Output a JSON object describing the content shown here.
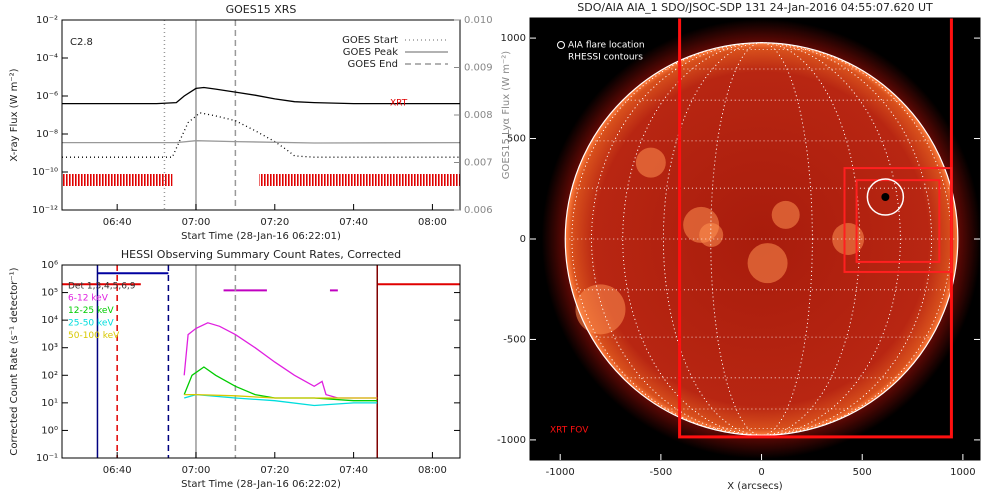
{
  "chart_data": [
    {
      "type": "line",
      "title": "GOES15 XRS",
      "xlabel": "Start Time (28-Jan-16 06:22:01)",
      "ylabel": "X-ray Flux (W m⁻²)",
      "y2label": "GOES15 Lyα Flux (W m⁻²)",
      "log_y": true,
      "xlim": [
        "06:26",
        "08:07"
      ],
      "xticks": [
        "06:40",
        "07:00",
        "07:20",
        "07:40",
        "08:00"
      ],
      "ylim": [
        1e-12,
        0.01
      ],
      "yticks": [
        {
          "value": 1e-12,
          "label": "10⁻¹²"
        },
        {
          "value": 1e-10,
          "label": "10⁻¹⁰"
        },
        {
          "value": 1e-08,
          "label": "10⁻⁸"
        },
        {
          "value": 1e-06,
          "label": "10⁻⁶"
        },
        {
          "value": 0.0001,
          "label": "10⁻⁴"
        },
        {
          "value": 0.01,
          "label": "10⁻²"
        }
      ],
      "y2lim": [
        0.006,
        0.01
      ],
      "y2ticks": [
        0.006,
        0.007,
        0.008,
        0.009,
        {
          "value": 0.01,
          "label": "0.010"
        }
      ],
      "series": [
        {
          "color": "#000000",
          "style": "solid",
          "x": [
            "06:26",
            "06:50",
            "06:55",
            "06:57",
            "07:00",
            "07:02",
            "07:05",
            "07:10",
            "07:15",
            "07:20",
            "07:25",
            "07:30",
            "07:40",
            "08:07"
          ],
          "values": [
            4e-07,
            4e-07,
            4.5e-07,
            1e-06,
            2.5e-06,
            2.8e-06,
            2.3e-06,
            1.6e-06,
            1.1e-06,
            7e-07,
            5e-07,
            4.5e-07,
            4e-07,
            4e-07
          ]
        },
        {
          "color": "#000000",
          "style": "dotted",
          "x": [
            "06:26",
            "06:54",
            "06:56",
            "06:58",
            "07:01",
            "07:05",
            "07:10",
            "07:15",
            "07:20",
            "07:23",
            "07:25",
            "07:30",
            "08:07"
          ],
          "values": [
            6e-10,
            6e-10,
            5e-09,
            4e-08,
            1.3e-07,
            9e-08,
            5e-08,
            1.5e-08,
            4e-09,
            1.5e-09,
            7e-10,
            6e-10,
            6e-10
          ]
        },
        {
          "color": "#999999",
          "style": "solid",
          "axis": "y2",
          "x": [
            "06:26",
            "06:55",
            "07:00",
            "07:10",
            "07:30",
            "08:07"
          ],
          "values": [
            0.00742,
            0.00742,
            0.00746,
            0.00744,
            0.00741,
            0.00742
          ]
        }
      ],
      "vlines": [
        {
          "name": "GOES Start",
          "x": "06:52",
          "color": "#999999",
          "style": "dotted"
        },
        {
          "name": "GOES Peak",
          "x": "07:00",
          "color": "#999999",
          "style": "solid"
        },
        {
          "name": "GOES End",
          "x": "07:10",
          "color": "#999999",
          "style": "dashed"
        }
      ],
      "xrt_intervals": [
        [
          "06:26",
          "06:54"
        ],
        [
          "07:16",
          "08:07"
        ]
      ],
      "xrt_color": "#e00000",
      "annotations": [
        "C2.8",
        "XRT"
      ],
      "legend": "upper right"
    },
    {
      "type": "line",
      "title": "HESSI Observing Summary Count Rates, Corrected",
      "xlabel": "Start Time (28-Jan-16 06:22:02)",
      "ylabel": "Corrected Count Rate (s⁻¹ detector⁻¹)",
      "log_y": true,
      "xlim": [
        "06:26",
        "08:07"
      ],
      "xticks": [
        "06:40",
        "07:00",
        "07:20",
        "07:40",
        "08:00"
      ],
      "ylim": [
        0.1,
        1000000
      ],
      "yticks": [
        {
          "value": 0.1,
          "label": "10⁻¹"
        },
        {
          "value": 1,
          "label": "10⁰"
        },
        {
          "value": 10,
          "label": "10¹"
        },
        {
          "value": 100,
          "label": "10²"
        },
        {
          "value": 1000,
          "label": "10³"
        },
        {
          "value": 10000,
          "label": "10⁴"
        },
        {
          "value": 100000,
          "label": "10⁵"
        },
        {
          "value": 1000000,
          "label": "10⁶"
        }
      ],
      "detectors": "Det 1,3,4,5,6,9",
      "series": [
        {
          "name": "6-12 keV",
          "color": "#e020e0",
          "x": [
            "06:57",
            "06:58",
            "07:00",
            "07:03",
            "07:06",
            "07:10",
            "07:15",
            "07:20",
            "07:25",
            "07:30",
            "07:32",
            "07:33",
            "07:36",
            "07:46"
          ],
          "values": [
            100,
            3000,
            5000,
            8000,
            6000,
            3000,
            1000,
            300,
            100,
            40,
            60,
            20,
            15,
            15
          ]
        },
        {
          "name": "12-25 keV",
          "color": "#00cc00",
          "x": [
            "06:57",
            "06:59",
            "07:02",
            "07:05",
            "07:10",
            "07:15",
            "07:20",
            "07:30",
            "07:40",
            "07:46"
          ],
          "values": [
            20,
            100,
            200,
            100,
            40,
            20,
            15,
            15,
            12,
            12
          ]
        },
        {
          "name": "25-50 keV",
          "color": "#00dddd",
          "x": [
            "06:57",
            "07:00",
            "07:10",
            "07:20",
            "07:30",
            "07:40",
            "07:46"
          ],
          "values": [
            15,
            20,
            15,
            12,
            8,
            10,
            10
          ]
        },
        {
          "name": "50-100 keV",
          "color": "#d8c800",
          "x": [
            "06:57",
            "07:00",
            "07:10",
            "07:20",
            "07:30",
            "07:40",
            "07:46"
          ],
          "values": [
            20,
            20,
            18,
            15,
            15,
            15,
            15
          ]
        }
      ],
      "vlines": [
        {
          "x": "06:35",
          "color": "#000080",
          "style": "solid"
        },
        {
          "x": "06:40",
          "color": "#e00000",
          "style": "dashed"
        },
        {
          "x": "06:53",
          "color": "#000080",
          "style": "dashed"
        },
        {
          "x": "07:00",
          "color": "#999999",
          "style": "solid"
        },
        {
          "x": "07:10",
          "color": "#999999",
          "style": "dashed"
        },
        {
          "x": "07:46",
          "color": "#800000",
          "style": "solid"
        }
      ],
      "flags": [
        {
          "color": "#e00000",
          "x": [
            "06:26",
            "06:46"
          ],
          "value": 200000
        },
        {
          "color": "#e00000",
          "x": [
            "07:46",
            "08:07"
          ],
          "value": 200000
        },
        {
          "color": "#c000c0",
          "x": [
            "07:07",
            "07:18"
          ],
          "value": 120000
        },
        {
          "color": "#c000c0",
          "x": [
            "07:34",
            "07:36"
          ],
          "value": 120000
        },
        {
          "color": "#0000a0",
          "x": [
            "06:35",
            "06:53"
          ],
          "value": 500000
        }
      ]
    },
    {
      "type": "image",
      "title": "SDO/AIA AIA_1 SDO/JSOC-SDP 131 24-Jan-2016 04:55:07.620 UT",
      "xlabel": "X (arcsecs)",
      "xlim": [
        -1150,
        1085
      ],
      "xticks": [
        -1000,
        -500,
        0,
        500,
        1000
      ],
      "ylim": [
        -1100,
        1100
      ],
      "yticks": [
        -1000,
        -500,
        0,
        500,
        1000
      ],
      "series": [
        {
          "name": "AIA flare location",
          "color": "#ffffff",
          "x": [
            615
          ],
          "values": [
            209
          ]
        }
      ],
      "contours": {
        "name": "RHESSI contours",
        "color": "#ff2020",
        "boxes": [
          {
            "x": [
              412,
              943
            ],
            "y": [
              -164,
              353
            ]
          },
          {
            "x": [
              472,
              883
            ],
            "y": [
              -114,
              293
            ]
          }
        ]
      },
      "fov": {
        "label": "XRT FOV",
        "color": "#ff1010",
        "x": [
          -407,
          943
        ],
        "y": [
          -985,
          1150
        ]
      }
    }
  ]
}
